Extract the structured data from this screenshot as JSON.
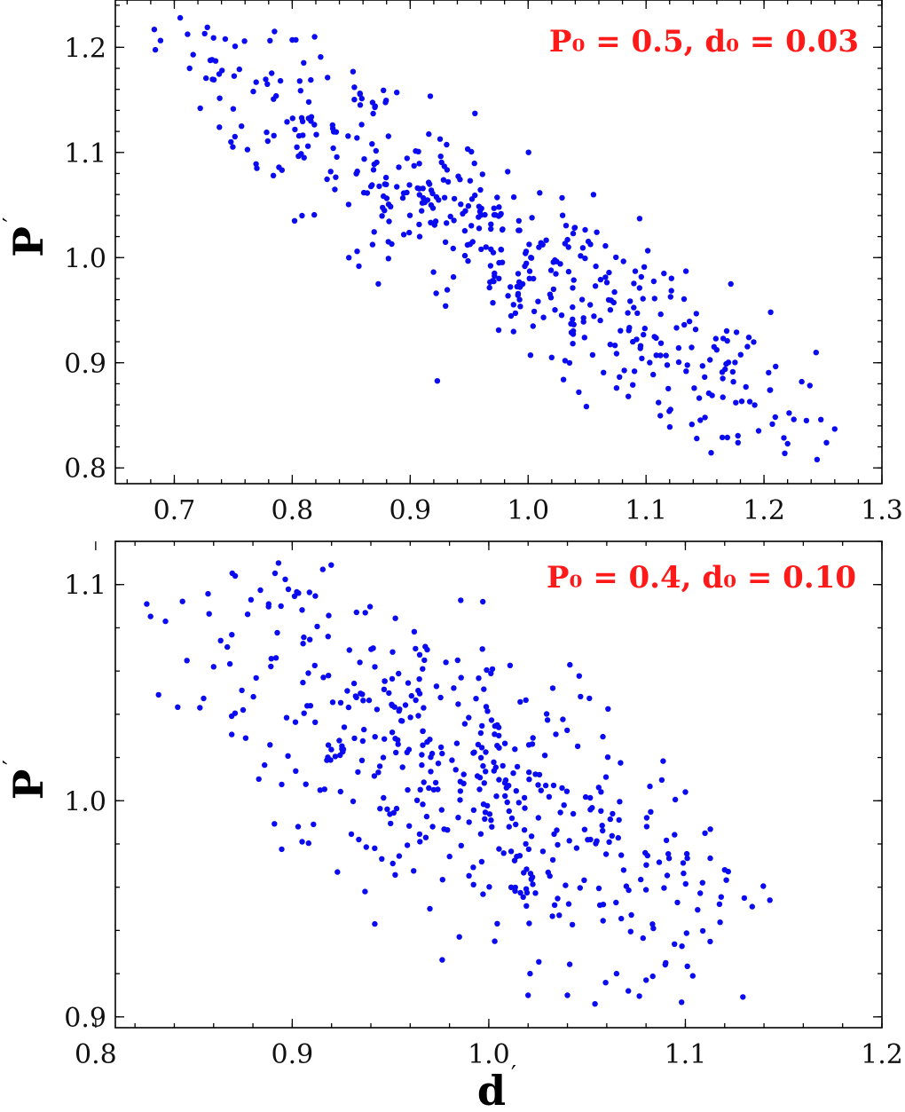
{
  "chart_data": [
    {
      "type": "scatter",
      "xlim": [
        0.65,
        1.3
      ],
      "ylim": [
        0.785,
        1.245
      ],
      "x_ticks": [
        0.7,
        0.8,
        0.9,
        1.0,
        1.1,
        1.2,
        1.3
      ],
      "y_ticks": [
        0.8,
        0.9,
        1.0,
        1.1,
        1.2
      ],
      "x_tick_labels": [
        "0.7",
        "0.8",
        "0.9",
        "1.0",
        "1.1",
        "1.2",
        "1.3"
      ],
      "y_tick_labels": [
        "0.8",
        "0.9",
        "1.0",
        "1.1",
        "1.2"
      ],
      "xlabel": "",
      "ylabel": "P",
      "ylabel_prime": "′",
      "annotation": "P₀ = 0.5,   d₀ = 0.03",
      "annotation_color": "#ff1a1a",
      "marker_color": "#0b0bf0",
      "grid": false,
      "n_points": 500,
      "trend": {
        "slope": -0.68,
        "intercept": 1.68,
        "spread_sd": 0.042
      },
      "anchor_points": [
        [
          0.683,
          1.217
        ],
        [
          0.705,
          1.228
        ],
        [
          0.713,
          1.18
        ],
        [
          0.716,
          1.193
        ],
        [
          0.722,
          1.142
        ],
        [
          0.728,
          1.219
        ],
        [
          0.735,
          1.187
        ],
        [
          0.748,
          1.11
        ],
        [
          0.757,
          1.125
        ],
        [
          0.767,
          1.158
        ],
        [
          0.77,
          1.085
        ],
        [
          0.785,
          1.215
        ],
        [
          0.8,
          1.207
        ],
        [
          0.802,
          1.035
        ],
        [
          0.81,
          1.095
        ],
        [
          0.814,
          1.148
        ],
        [
          0.819,
          1.21
        ],
        [
          0.848,
          1.0
        ],
        [
          0.855,
          1.006
        ],
        [
          0.873,
          0.975
        ],
        [
          0.93,
          0.954
        ],
        [
          0.975,
          0.931
        ],
        [
          1.02,
          0.905
        ],
        [
          1.03,
          0.884
        ],
        [
          1.043,
          0.872
        ],
        [
          1.075,
          0.876
        ],
        [
          1.085,
          0.868
        ],
        [
          1.143,
          0.828
        ],
        [
          1.15,
          0.848
        ],
        [
          1.165,
          0.885
        ],
        [
          1.178,
          0.824
        ],
        [
          1.188,
          0.863
        ],
        [
          1.205,
          0.874
        ],
        [
          1.22,
          0.823
        ],
        [
          1.232,
          0.882
        ],
        [
          1.236,
          0.845
        ],
        [
          1.245,
          0.808
        ],
        [
          1.253,
          0.824
        ],
        [
          1.26,
          0.837
        ]
      ]
    },
    {
      "type": "scatter",
      "xlim": [
        0.81,
        1.2
      ],
      "ylim": [
        0.895,
        1.12
      ],
      "x_ticks": [
        0.8,
        0.9,
        1.0,
        1.1,
        1.2
      ],
      "y_ticks": [
        0.9,
        1.0,
        1.1
      ],
      "x_tick_labels": [
        "0.8",
        "0.9",
        "1.0",
        "1.1",
        "1.2"
      ],
      "y_tick_labels": [
        "0.9",
        "1.0",
        "1.1"
      ],
      "xlabel": "d",
      "xlabel_prime": "′",
      "ylabel": "P",
      "ylabel_prime": "′",
      "annotation": "P₀ = 0.4,   d₀ = 0.10",
      "annotation_color": "#ff1a1a",
      "marker_color": "#0b0bf0",
      "grid": false,
      "n_points": 500,
      "trend": {
        "slope": -0.5,
        "intercept": 1.505,
        "spread_sd": 0.034
      },
      "anchor_points": [
        [
          0.826,
          1.091
        ],
        [
          0.832,
          1.049
        ],
        [
          0.853,
          1.043
        ],
        [
          0.86,
          1.062
        ],
        [
          0.871,
          1.104
        ],
        [
          0.875,
          1.042
        ],
        [
          0.879,
          1.093
        ],
        [
          0.893,
          1.11
        ],
        [
          0.883,
          1.01
        ],
        [
          0.888,
          1.091
        ],
        [
          0.903,
          0.988
        ],
        [
          0.905,
          0.981
        ],
        [
          0.923,
          0.967
        ],
        [
          0.937,
          0.958
        ],
        [
          0.942,
          0.943
        ],
        [
          0.97,
          0.95
        ],
        [
          0.985,
          0.937
        ],
        [
          1.003,
          0.935
        ],
        [
          1.02,
          0.91
        ],
        [
          1.021,
          0.92
        ],
        [
          1.04,
          0.91
        ],
        [
          1.054,
          0.906
        ],
        [
          1.065,
          0.92
        ],
        [
          1.071,
          0.912
        ],
        [
          1.08,
          0.917
        ],
        [
          1.09,
          0.925
        ],
        [
          1.1,
          1.004
        ],
        [
          1.11,
          0.985
        ],
        [
          1.12,
          0.968
        ],
        [
          1.13,
          0.955
        ],
        [
          1.134,
          0.951
        ],
        [
          1.143,
          0.954
        ]
      ]
    }
  ]
}
